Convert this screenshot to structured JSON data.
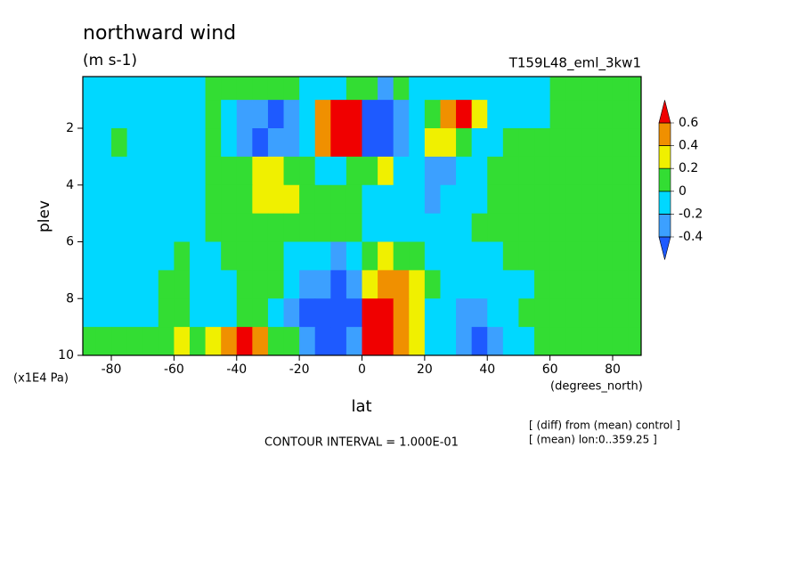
{
  "chart_data": {
    "type": "contour",
    "title": "northward wind",
    "subtitle": "(m s-1)",
    "experiment": "T159L48_eml_3kw1",
    "x_label": "lat",
    "x_unit": "(degrees_north)",
    "y_label": "plev",
    "y_unit": "(x1E4 Pa)",
    "contour_interval": "CONTOUR INTERVAL = 1.000E-01",
    "notes": [
      "[ (diff) from (mean) control ]",
      "[ (mean) lon:0..359.25 ]"
    ],
    "xlim": [
      -89.1,
      89.1
    ],
    "ylim": [
      0.18,
      10
    ],
    "y_reversed": true,
    "xticks": [
      -80,
      -60,
      -40,
      -20,
      0,
      20,
      40,
      60,
      80
    ],
    "yticks": [
      2,
      4,
      6,
      8,
      10
    ],
    "levels": [
      -0.4,
      -0.2,
      0,
      0.2,
      0.4,
      0.6
    ],
    "colors": [
      "#1e5aff",
      "#3ca0ff",
      "#00d8ff",
      "#33dd33",
      "#f0f000",
      "#f09000",
      "#f00000"
    ],
    "x": [
      -87.5,
      -82.5,
      -77.5,
      -72.5,
      -67.5,
      -62.5,
      -57.5,
      -52.5,
      -47.5,
      -42.5,
      -37.5,
      -32.5,
      -27.5,
      -22.5,
      -17.5,
      -12.5,
      -7.5,
      -2.5,
      2.5,
      7.5,
      12.5,
      17.5,
      22.5,
      27.5,
      32.5,
      37.5,
      42.5,
      47.5,
      52.5,
      57.5,
      62.5,
      67.5,
      72.5,
      77.5,
      82.5,
      87.5
    ],
    "y": [
      0.5,
      1.5,
      2.5,
      3.5,
      4.5,
      5.5,
      6.5,
      7.5,
      8.5,
      9.5
    ],
    "z": [
      [
        -0.1,
        -0.1,
        -0.1,
        -0.1,
        -0.1,
        -0.1,
        -0.1,
        -0.1,
        0.1,
        0.1,
        0.1,
        0.1,
        0.1,
        0.1,
        -0.1,
        -0.1,
        -0.1,
        0.1,
        0.1,
        -0.3,
        0.1,
        -0.1,
        -0.1,
        -0.1,
        -0.1,
        -0.1,
        -0.1,
        -0.1,
        -0.1,
        -0.1,
        0.1,
        0.1,
        0.1,
        0.1,
        0.1,
        0.1
      ],
      [
        -0.1,
        -0.1,
        -0.1,
        -0.1,
        -0.1,
        -0.1,
        -0.1,
        -0.1,
        0.1,
        -0.1,
        -0.3,
        -0.3,
        -0.5,
        -0.3,
        -0.1,
        0.5,
        0.7,
        0.7,
        -0.5,
        -0.5,
        -0.3,
        -0.1,
        0.1,
        0.5,
        0.7,
        0.3,
        -0.1,
        -0.1,
        -0.1,
        -0.1,
        0.1,
        0.1,
        0.1,
        0.1,
        0.1,
        0.1
      ],
      [
        -0.1,
        -0.1,
        0.1,
        -0.1,
        -0.1,
        -0.1,
        -0.1,
        -0.1,
        0.1,
        -0.1,
        -0.3,
        -0.5,
        -0.3,
        -0.3,
        -0.1,
        0.5,
        0.7,
        0.7,
        -0.5,
        -0.5,
        -0.3,
        -0.1,
        0.3,
        0.3,
        0.1,
        -0.1,
        -0.1,
        0.1,
        0.1,
        0.1,
        0.1,
        0.1,
        0.1,
        0.1,
        0.1,
        0.1
      ],
      [
        -0.1,
        -0.1,
        -0.1,
        -0.1,
        -0.1,
        -0.1,
        -0.1,
        -0.1,
        0.1,
        0.1,
        0.1,
        0.3,
        0.3,
        0.1,
        0.1,
        -0.1,
        -0.1,
        0.1,
        0.1,
        0.3,
        -0.1,
        -0.1,
        -0.3,
        -0.3,
        -0.1,
        -0.1,
        0.1,
        0.1,
        0.1,
        0.1,
        0.1,
        0.1,
        0.1,
        0.1,
        0.1,
        0.1
      ],
      [
        -0.1,
        -0.1,
        -0.1,
        -0.1,
        -0.1,
        -0.1,
        -0.1,
        -0.1,
        0.1,
        0.1,
        0.1,
        0.3,
        0.3,
        0.3,
        0.1,
        0.1,
        0.1,
        0.1,
        -0.1,
        -0.1,
        -0.1,
        -0.1,
        -0.3,
        -0.1,
        -0.1,
        -0.1,
        0.1,
        0.1,
        0.1,
        0.1,
        0.1,
        0.1,
        0.1,
        0.1,
        0.1,
        0.1
      ],
      [
        -0.1,
        -0.1,
        -0.1,
        -0.1,
        -0.1,
        -0.1,
        -0.1,
        -0.1,
        0.1,
        0.1,
        0.1,
        0.1,
        0.1,
        0.1,
        0.1,
        0.1,
        0.1,
        0.1,
        -0.1,
        -0.1,
        -0.1,
        -0.1,
        -0.1,
        -0.1,
        -0.1,
        0.1,
        0.1,
        0.1,
        0.1,
        0.1,
        0.1,
        0.1,
        0.1,
        0.1,
        0.1,
        0.1
      ],
      [
        -0.1,
        -0.1,
        -0.1,
        -0.1,
        -0.1,
        -0.1,
        0.1,
        -0.1,
        -0.1,
        0.1,
        0.1,
        0.1,
        0.1,
        -0.1,
        -0.1,
        -0.1,
        -0.3,
        -0.1,
        0.1,
        0.3,
        0.1,
        0.1,
        -0.1,
        -0.1,
        -0.1,
        -0.1,
        -0.1,
        0.1,
        0.1,
        0.1,
        0.1,
        0.1,
        0.1,
        0.1,
        0.1,
        0.1
      ],
      [
        -0.1,
        -0.1,
        -0.1,
        -0.1,
        -0.1,
        0.1,
        0.1,
        -0.1,
        -0.1,
        -0.1,
        0.1,
        0.1,
        0.1,
        -0.1,
        -0.3,
        -0.3,
        -0.5,
        -0.3,
        0.3,
        0.5,
        0.5,
        0.3,
        0.1,
        -0.1,
        -0.1,
        -0.1,
        -0.1,
        -0.1,
        -0.1,
        0.1,
        0.1,
        0.1,
        0.1,
        0.1,
        0.1,
        0.1
      ],
      [
        -0.1,
        -0.1,
        -0.1,
        -0.1,
        -0.1,
        0.1,
        0.1,
        -0.1,
        -0.1,
        -0.1,
        0.1,
        0.1,
        -0.1,
        -0.3,
        -0.5,
        -0.5,
        -0.5,
        -0.5,
        0.7,
        0.7,
        0.5,
        0.3,
        -0.1,
        -0.1,
        -0.3,
        -0.3,
        -0.1,
        -0.1,
        0.1,
        0.1,
        0.1,
        0.1,
        0.1,
        0.1,
        0.1,
        0.1
      ],
      [
        0.1,
        0.1,
        0.1,
        0.1,
        0.1,
        0.1,
        0.3,
        0.1,
        0.3,
        0.5,
        0.7,
        0.5,
        0.1,
        0.1,
        -0.3,
        -0.5,
        -0.5,
        -0.3,
        0.7,
        0.7,
        0.5,
        0.3,
        -0.1,
        -0.1,
        -0.3,
        -0.5,
        -0.3,
        -0.1,
        -0.1,
        0.1,
        0.1,
        0.1,
        0.1,
        0.1,
        0.1,
        0.1
      ]
    ]
  }
}
